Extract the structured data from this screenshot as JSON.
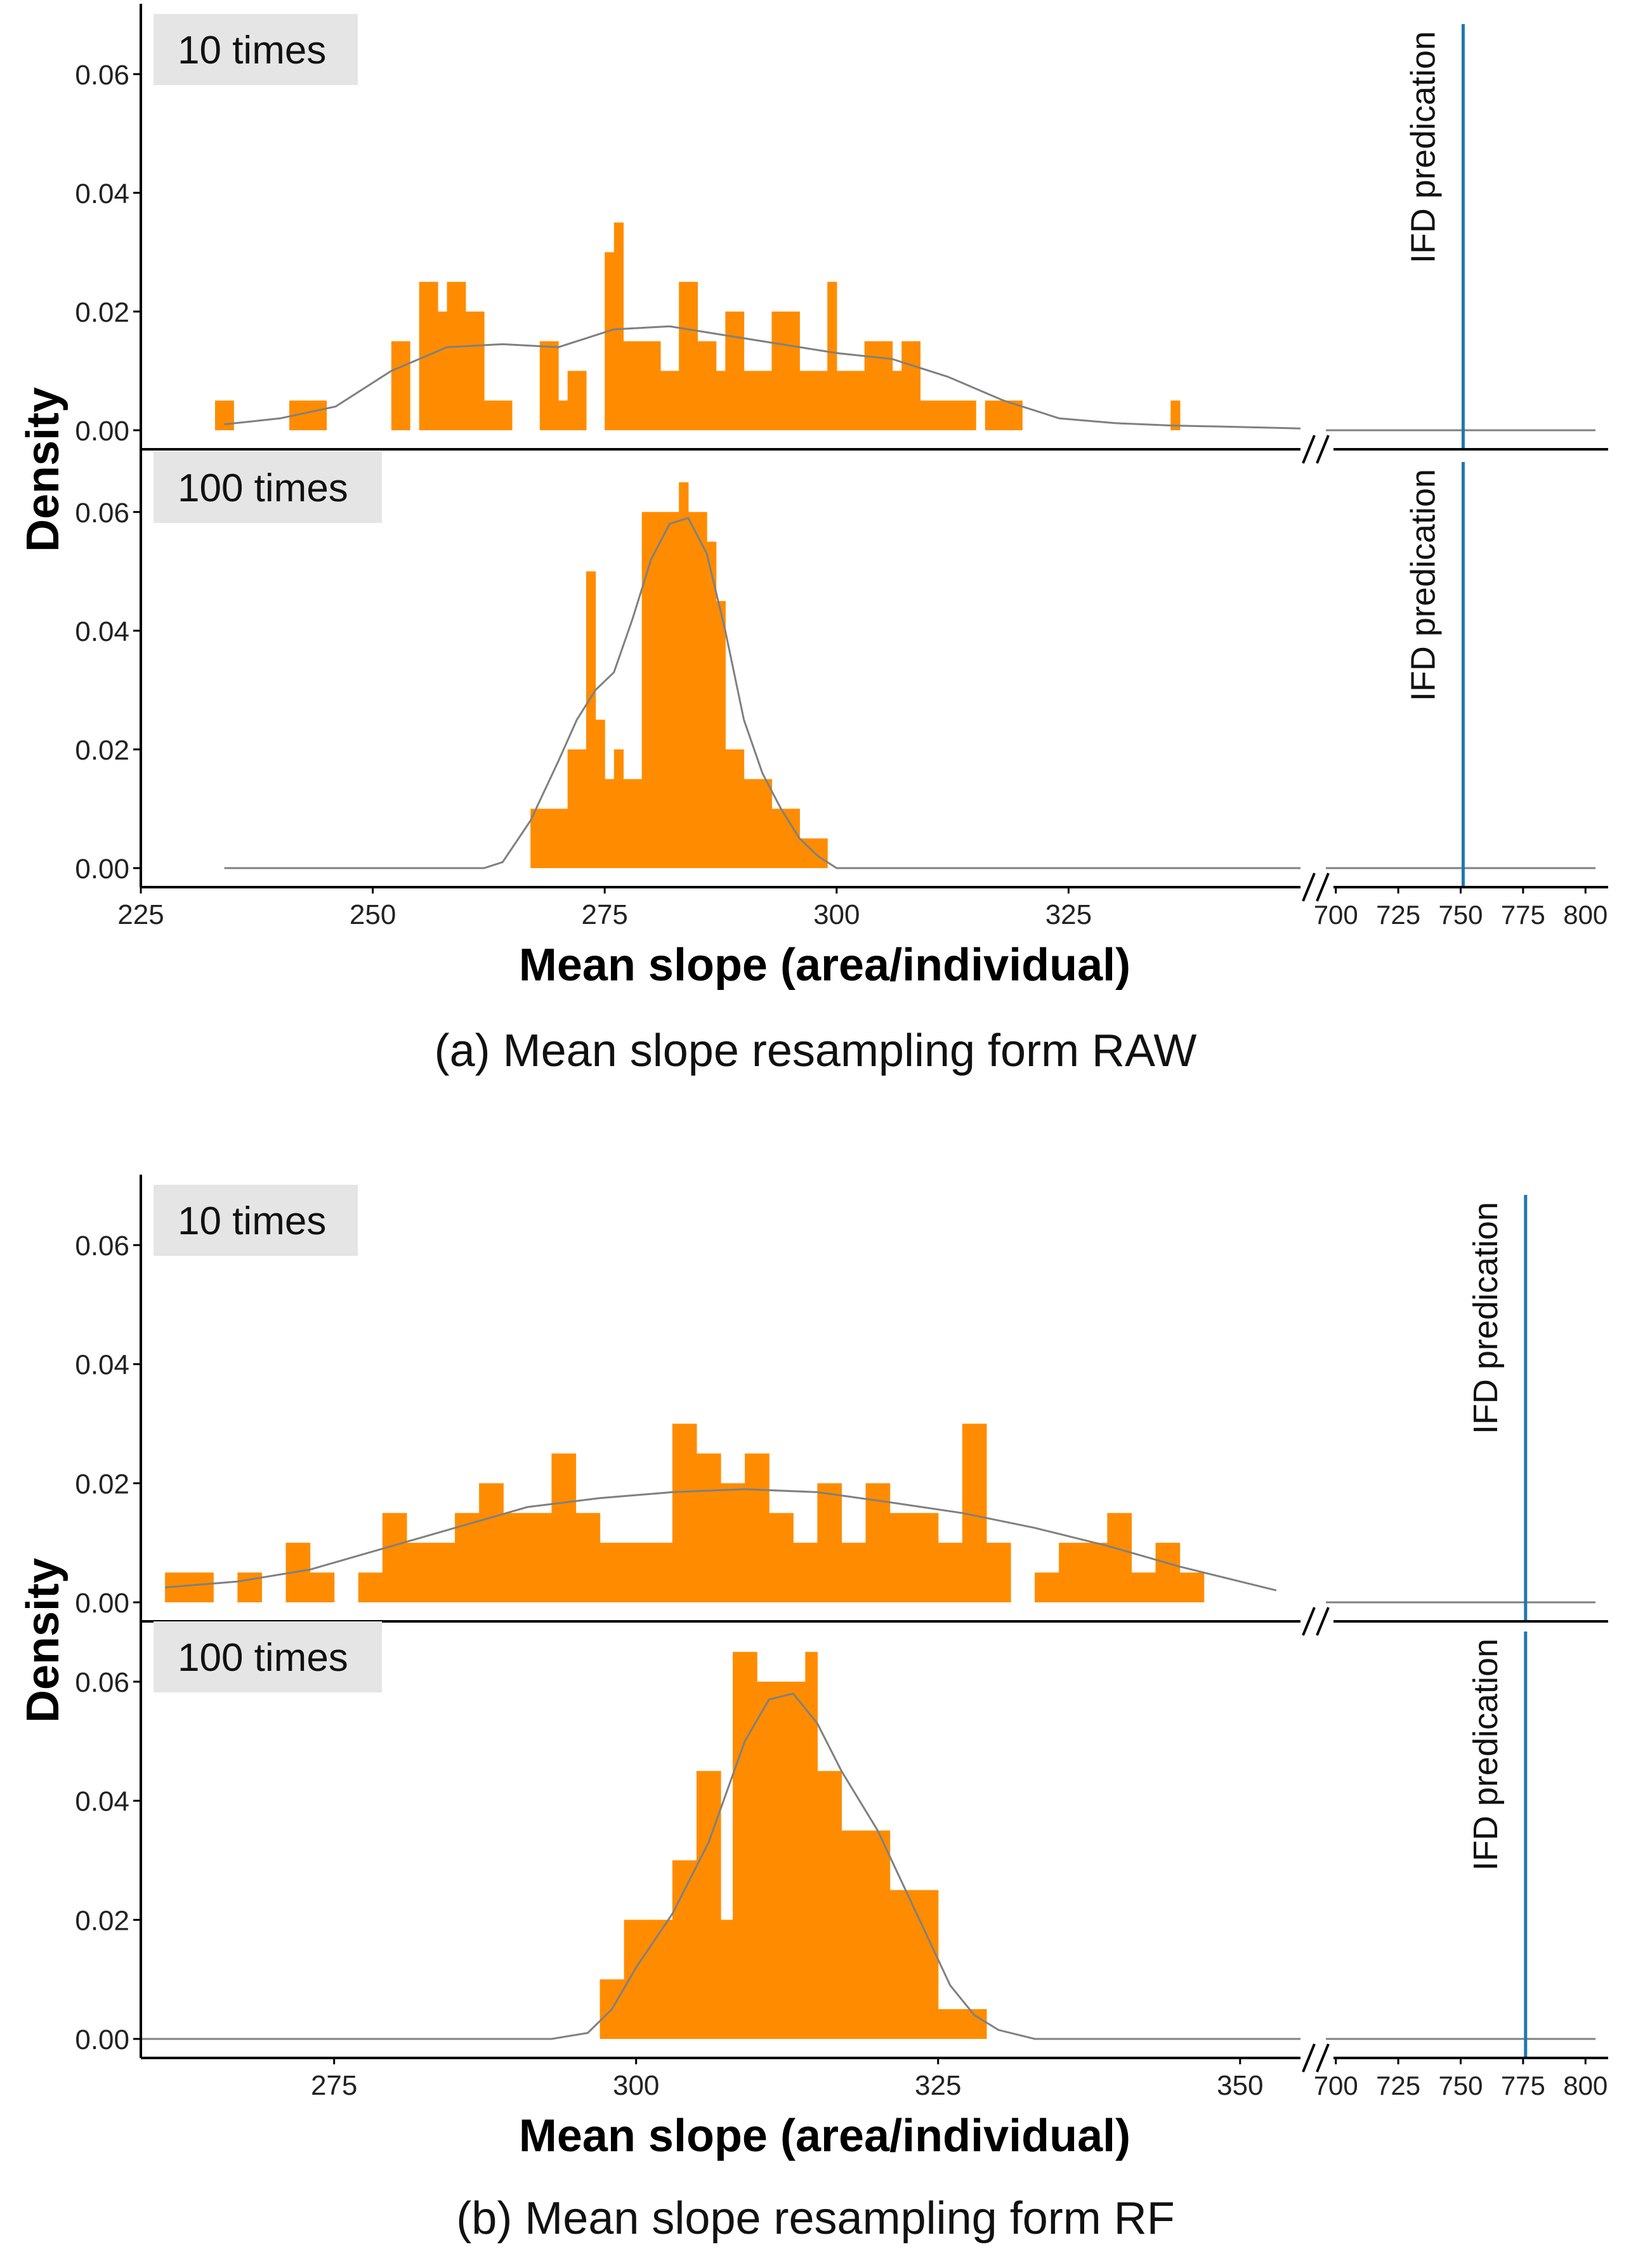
{
  "colors": {
    "bar": "#FF8C00",
    "density_line": "#808080",
    "ifd_line": "#1F77B4",
    "axis": "#000000",
    "strip_bg": "#E5E5E5"
  },
  "chart_data": [
    {
      "type": "bar",
      "caption": "(a) Mean slope resampling form RAW",
      "ylabel": "Density",
      "xlabel": "Mean slope (area/individual)",
      "xlim": [
        225,
        350
      ],
      "x_ticks": [
        225,
        250,
        275,
        300,
        325
      ],
      "x_ticks_right": [
        700,
        725,
        750,
        775,
        800
      ],
      "xlim_right": [
        696,
        804
      ],
      "ylim": [
        0,
        0.068
      ],
      "y_ticks": [
        "0.00",
        "0.02",
        "0.04",
        "0.06"
      ],
      "ifd_line_x": 751,
      "ifd_label": "IFD predication",
      "panels": [
        {
          "label": "10 times",
          "bins": [
            [
              233,
              235,
              0.005
            ],
            [
              241,
              245,
              0.005
            ],
            [
              252,
              254,
              0.015
            ],
            [
              255,
              257,
              0.025
            ],
            [
              257,
              258,
              0.02
            ],
            [
              258,
              259,
              0.025
            ],
            [
              259,
              260,
              0.025
            ],
            [
              260,
              262,
              0.02
            ],
            [
              262,
              265,
              0.005
            ],
            [
              268,
              270,
              0.015
            ],
            [
              270,
              271,
              0.005
            ],
            [
              271,
              273,
              0.01
            ],
            [
              275,
              276,
              0.03
            ],
            [
              276,
              277,
              0.035
            ],
            [
              277,
              279,
              0.015
            ],
            [
              279,
              280,
              0.015
            ],
            [
              280,
              281,
              0.015
            ],
            [
              281,
              283,
              0.01
            ],
            [
              283,
              285,
              0.025
            ],
            [
              285,
              287,
              0.015
            ],
            [
              287,
              288,
              0.01
            ],
            [
              288,
              290,
              0.02
            ],
            [
              290,
              293,
              0.01
            ],
            [
              293,
              296,
              0.02
            ],
            [
              296,
              298,
              0.01
            ],
            [
              298,
              299,
              0.01
            ],
            [
              299,
              300,
              0.025
            ],
            [
              300,
              301,
              0.01
            ],
            [
              301,
              303,
              0.01
            ],
            [
              303,
              306,
              0.015
            ],
            [
              306,
              307,
              0.01
            ],
            [
              307,
              309,
              0.015
            ],
            [
              309,
              315,
              0.005
            ],
            [
              316,
              320,
              0.005
            ],
            [
              336,
              337,
              0.005
            ]
          ],
          "density": [
            [
              234,
              0.001
            ],
            [
              240,
              0.002
            ],
            [
              246,
              0.004
            ],
            [
              252,
              0.01
            ],
            [
              258,
              0.014
            ],
            [
              264,
              0.0145
            ],
            [
              270,
              0.014
            ],
            [
              276,
              0.017
            ],
            [
              282,
              0.0175
            ],
            [
              288,
              0.016
            ],
            [
              294,
              0.0145
            ],
            [
              300,
              0.013
            ],
            [
              306,
              0.012
            ],
            [
              312,
              0.009
            ],
            [
              318,
              0.005
            ],
            [
              324,
              0.002
            ],
            [
              330,
              0.0012
            ],
            [
              336,
              0.0008
            ],
            [
              342,
              0.0006
            ],
            [
              350,
              0.0003
            ]
          ]
        },
        {
          "label": "100 times",
          "bins": [
            [
              267,
              269,
              0.01
            ],
            [
              269,
              271,
              0.01
            ],
            [
              271,
              273,
              0.02
            ],
            [
              273,
              274,
              0.05
            ],
            [
              274,
              275,
              0.025
            ],
            [
              275,
              276,
              0.015
            ],
            [
              276,
              277,
              0.02
            ],
            [
              277,
              279,
              0.015
            ],
            [
              279,
              283,
              0.06
            ],
            [
              283,
              284,
              0.065
            ],
            [
              284,
              286,
              0.06
            ],
            [
              286,
              287,
              0.055
            ],
            [
              287,
              288,
              0.045
            ],
            [
              288,
              290,
              0.02
            ],
            [
              290,
              293,
              0.015
            ],
            [
              293,
              296,
              0.01
            ],
            [
              296,
              299,
              0.005
            ]
          ],
          "density": [
            [
              234,
              0.0
            ],
            [
              262,
              0.0
            ],
            [
              264,
              0.001
            ],
            [
              267,
              0.008
            ],
            [
              270,
              0.018
            ],
            [
              272,
              0.025
            ],
            [
              274,
              0.03
            ],
            [
              276,
              0.033
            ],
            [
              278,
              0.042
            ],
            [
              280,
              0.052
            ],
            [
              282,
              0.058
            ],
            [
              284,
              0.059
            ],
            [
              286,
              0.053
            ],
            [
              288,
              0.04
            ],
            [
              290,
              0.025
            ],
            [
              292,
              0.016
            ],
            [
              294,
              0.01
            ],
            [
              296,
              0.005
            ],
            [
              298,
              0.002
            ],
            [
              300,
              0.0
            ],
            [
              350,
              0.0
            ]
          ]
        }
      ]
    },
    {
      "type": "bar",
      "caption": "(b) Mean slope resampling form RF",
      "ylabel": "Density",
      "xlabel": "Mean slope (area/individual)",
      "xlim": [
        259,
        355
      ],
      "x_ticks": [
        275,
        300,
        325,
        350
      ],
      "x_ticks_right": [
        700,
        725,
        750,
        775,
        800
      ],
      "xlim_right": [
        696,
        804
      ],
      "ylim": [
        0,
        0.068
      ],
      "y_ticks": [
        "0.00",
        "0.02",
        "0.04",
        "0.06"
      ],
      "ifd_line_x": 776,
      "ifd_label": "IFD predication",
      "panels": [
        {
          "label": "10 times",
          "bins": [
            [
              261,
              265,
              0.005
            ],
            [
              267,
              269,
              0.005
            ],
            [
              271,
              273,
              0.01
            ],
            [
              273,
              275,
              0.005
            ],
            [
              277,
              279,
              0.005
            ],
            [
              279,
              281,
              0.015
            ],
            [
              281,
              285,
              0.01
            ],
            [
              285,
              287,
              0.015
            ],
            [
              287,
              289,
              0.02
            ],
            [
              289,
              293,
              0.015
            ],
            [
              293,
              295,
              0.025
            ],
            [
              295,
              297,
              0.015
            ],
            [
              297,
              299,
              0.01
            ],
            [
              299,
              301,
              0.01
            ],
            [
              301,
              303,
              0.01
            ],
            [
              303,
              305,
              0.03
            ],
            [
              305,
              307,
              0.025
            ],
            [
              307,
              309,
              0.02
            ],
            [
              309,
              311,
              0.025
            ],
            [
              311,
              313,
              0.015
            ],
            [
              313,
              315,
              0.01
            ],
            [
              315,
              317,
              0.02
            ],
            [
              317,
              319,
              0.01
            ],
            [
              319,
              321,
              0.02
            ],
            [
              321,
              323,
              0.015
            ],
            [
              323,
              325,
              0.015
            ],
            [
              325,
              327,
              0.01
            ],
            [
              327,
              329,
              0.03
            ],
            [
              329,
              331,
              0.01
            ],
            [
              333,
              335,
              0.005
            ],
            [
              335,
              337,
              0.01
            ],
            [
              337,
              339,
              0.01
            ],
            [
              339,
              341,
              0.015
            ],
            [
              341,
              343,
              0.005
            ],
            [
              343,
              345,
              0.01
            ],
            [
              345,
              347,
              0.005
            ]
          ],
          "density": [
            [
              261,
              0.0025
            ],
            [
              267,
              0.0035
            ],
            [
              273,
              0.0055
            ],
            [
              279,
              0.009
            ],
            [
              285,
              0.0125
            ],
            [
              291,
              0.016
            ],
            [
              297,
              0.0175
            ],
            [
              303,
              0.0185
            ],
            [
              309,
              0.019
            ],
            [
              315,
              0.0185
            ],
            [
              321,
              0.0168
            ],
            [
              327,
              0.015
            ],
            [
              333,
              0.0125
            ],
            [
              339,
              0.0095
            ],
            [
              345,
              0.006
            ],
            [
              350,
              0.0035
            ],
            [
              353,
              0.002
            ]
          ]
        },
        {
          "label": "100 times",
          "bins": [
            [
              297,
              299,
              0.01
            ],
            [
              299,
              301,
              0.02
            ],
            [
              301,
              303,
              0.02
            ],
            [
              303,
              305,
              0.03
            ],
            [
              305,
              307,
              0.045
            ],
            [
              307,
              308,
              0.02
            ],
            [
              308,
              310,
              0.065
            ],
            [
              310,
              312,
              0.06
            ],
            [
              312,
              314,
              0.06
            ],
            [
              314,
              315,
              0.065
            ],
            [
              315,
              317,
              0.045
            ],
            [
              317,
              319,
              0.035
            ],
            [
              319,
              321,
              0.035
            ],
            [
              321,
              323,
              0.025
            ],
            [
              323,
              325,
              0.025
            ],
            [
              325,
              327,
              0.005
            ],
            [
              327,
              329,
              0.005
            ]
          ],
          "density": [
            [
              259,
              0.0
            ],
            [
              293,
              0.0
            ],
            [
              296,
              0.001
            ],
            [
              298,
              0.005
            ],
            [
              300,
              0.012
            ],
            [
              303,
              0.021
            ],
            [
              306,
              0.033
            ],
            [
              309,
              0.05
            ],
            [
              311,
              0.057
            ],
            [
              313,
              0.058
            ],
            [
              315,
              0.053
            ],
            [
              317,
              0.045
            ],
            [
              320,
              0.035
            ],
            [
              323,
              0.022
            ],
            [
              326,
              0.009
            ],
            [
              328,
              0.004
            ],
            [
              330,
              0.0015
            ],
            [
              333,
              0.0
            ],
            [
              355,
              0.0
            ]
          ]
        }
      ]
    }
  ]
}
